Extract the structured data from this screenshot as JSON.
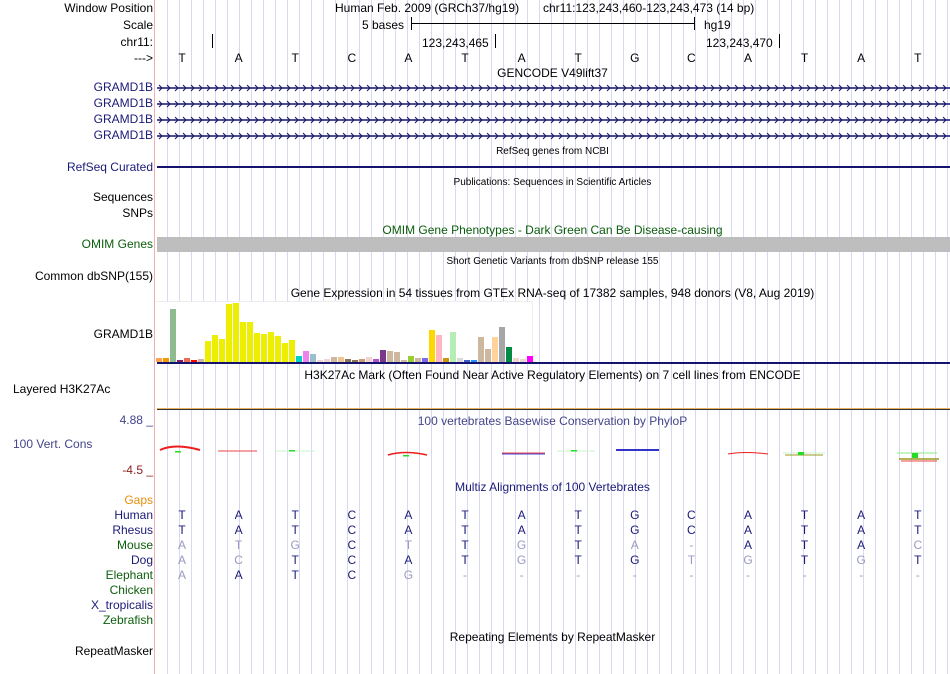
{
  "header": {
    "window_position_label": "Window Position",
    "scale_label": "Scale",
    "chrom_label": "chr11:",
    "strand_label": "--->",
    "assembly": "Human Feb. 2009 (GRCh37/hg19)",
    "position": "chr11:123,243,460-123,243,473 (14 bp)",
    "scale_text": "5 bases",
    "db": "hg19",
    "tick1": "123,243,465",
    "tick2": "123,243,470"
  },
  "sequence": [
    "T",
    "A",
    "T",
    "C",
    "A",
    "T",
    "A",
    "T",
    "G",
    "C",
    "A",
    "T",
    "A",
    "T"
  ],
  "tracks": {
    "gencode_title": "GENCODE V49lift37",
    "gencode_genes": [
      "GRAMD1B",
      "GRAMD1B",
      "GRAMD1B",
      "GRAMD1B"
    ],
    "refseq_label": "RefSeq Curated",
    "refseq_title": "RefSeq genes from NCBI",
    "pubs_title": "Publications: Sequences in Scientific Articles",
    "pubs_label_1": "Sequences",
    "pubs_label_2": "SNPs",
    "omim_title": "OMIM Gene Phenotypes - Dark Green Can Be Disease-causing",
    "omim_label": "OMIM Genes",
    "dbsnp_title": "Short Genetic Variants from dbSNP release 155",
    "dbsnp_label": "Common dbSNP(155)",
    "gtex_title": "Gene Expression in 54 tissues from GTEx RNA-seq of 17382 samples, 948 donors (V8, Aug 2019)",
    "gtex_label": "GRAMD1B",
    "h3k27_title": "H3K27Ac Mark (Often Found Near Active Regulatory Elements) on 7 cell lines from ENCODE",
    "h3k27_label": "Layered H3K27Ac",
    "cons_title": "100 vertebrates Basewise Conservation by PhyloP",
    "cons_label": "100 Vert. Cons",
    "cons_max": "4.88 _",
    "cons_min": "-4.5 _",
    "multiz_title": "Multiz Alignments of 100 Vertebrates",
    "gaps_label": "Gaps",
    "rmsk_title": "Repeating Elements by RepeatMasker",
    "rmsk_label": "RepeatMasker"
  },
  "alignment": [
    {
      "species": "Human",
      "color": "navy",
      "bases": [
        "T",
        "A",
        "T",
        "C",
        "A",
        "T",
        "A",
        "T",
        "G",
        "C",
        "A",
        "T",
        "A",
        "T"
      ],
      "faded": [
        0,
        0,
        0,
        0,
        0,
        0,
        0,
        0,
        0,
        0,
        0,
        0,
        0,
        0
      ]
    },
    {
      "species": "Rhesus",
      "color": "navy",
      "bases": [
        "T",
        "A",
        "T",
        "C",
        "A",
        "T",
        "A",
        "T",
        "G",
        "C",
        "A",
        "T",
        "A",
        "T"
      ],
      "faded": [
        0,
        0,
        0,
        0,
        0,
        0,
        0,
        0,
        0,
        0,
        0,
        0,
        0,
        0
      ]
    },
    {
      "species": "Mouse",
      "color": "green",
      "bases": [
        "A",
        "T",
        "G",
        "C",
        "T",
        "T",
        "G",
        "T",
        "A",
        "-",
        "A",
        "T",
        "A",
        "C"
      ],
      "faded": [
        1,
        1,
        1,
        0,
        1,
        0,
        1,
        0,
        1,
        1,
        0,
        0,
        0,
        1
      ]
    },
    {
      "species": "Dog",
      "color": "navy",
      "bases": [
        "A",
        "C",
        "T",
        "C",
        "A",
        "T",
        "G",
        "T",
        "G",
        "T",
        "G",
        "T",
        "G",
        "T"
      ],
      "faded": [
        1,
        1,
        0,
        0,
        0,
        0,
        1,
        0,
        0,
        1,
        1,
        0,
        1,
        0
      ]
    },
    {
      "species": "Elephant",
      "color": "green",
      "bases": [
        "A",
        "A",
        "T",
        "C",
        "G",
        "-",
        "-",
        "-",
        "-",
        "-",
        "-",
        "-",
        "-",
        "-"
      ],
      "faded": [
        1,
        0,
        0,
        0,
        1,
        1,
        1,
        1,
        1,
        1,
        1,
        1,
        1,
        1
      ]
    },
    {
      "species": "Chicken",
      "color": "green",
      "bases": [],
      "faded": []
    },
    {
      "species": "X_tropicalis",
      "color": "navy",
      "bases": [],
      "faded": []
    },
    {
      "species": "Zebrafish",
      "color": "green",
      "bases": [],
      "faded": []
    }
  ],
  "gtex_values": [
    4,
    4,
    55,
    2,
    4,
    2.5,
    3,
    22,
    28,
    24,
    60,
    61,
    41,
    41,
    30,
    29,
    31,
    27,
    20,
    23,
    6,
    11,
    8,
    2,
    3,
    5,
    5,
    3,
    2,
    3,
    5,
    3,
    12,
    11,
    10,
    2,
    6,
    4,
    4,
    33,
    28,
    4,
    31,
    4,
    2,
    2,
    26,
    13,
    26,
    36,
    16,
    4,
    3,
    6
  ],
  "gtex_colors": [
    "#ffa54f",
    "#ee9a00",
    "#8fbc8f",
    "#8b1c62",
    "#ee6a50",
    "#ff0000",
    "#cdb79e",
    "#eeee00",
    "#eeee00",
    "#eeee00",
    "#eeee00",
    "#eeee00",
    "#eeee00",
    "#eeee00",
    "#eeee00",
    "#eeee00",
    "#eeee00",
    "#eeee00",
    "#eeee00",
    "#eeee00",
    "#00cdcd",
    "#ee82ee",
    "#9ac0cd",
    "#eed5d2",
    "#eed5d2",
    "#cdb79e",
    "#eec591",
    "#8b7355",
    "#8b7355",
    "#cd9b6d",
    "#eed5d2",
    "#b452cd",
    "#7a378b",
    "#cdb79e",
    "#cdb79e",
    "#cdb79e",
    "#9acd32",
    "#cdb79e",
    "#7b68ee",
    "#ffd700",
    "#ffb6c1",
    "#cd950c",
    "#b4eeb4",
    "#d9d9d9",
    "#3a5fcd",
    "#1e90ff",
    "#cdb79e",
    "#cdb79e",
    "#ffd39b",
    "#a6a6a6",
    "#008b45",
    "#eed5d2",
    "#eed5d2",
    "#ff00ff"
  ]
}
